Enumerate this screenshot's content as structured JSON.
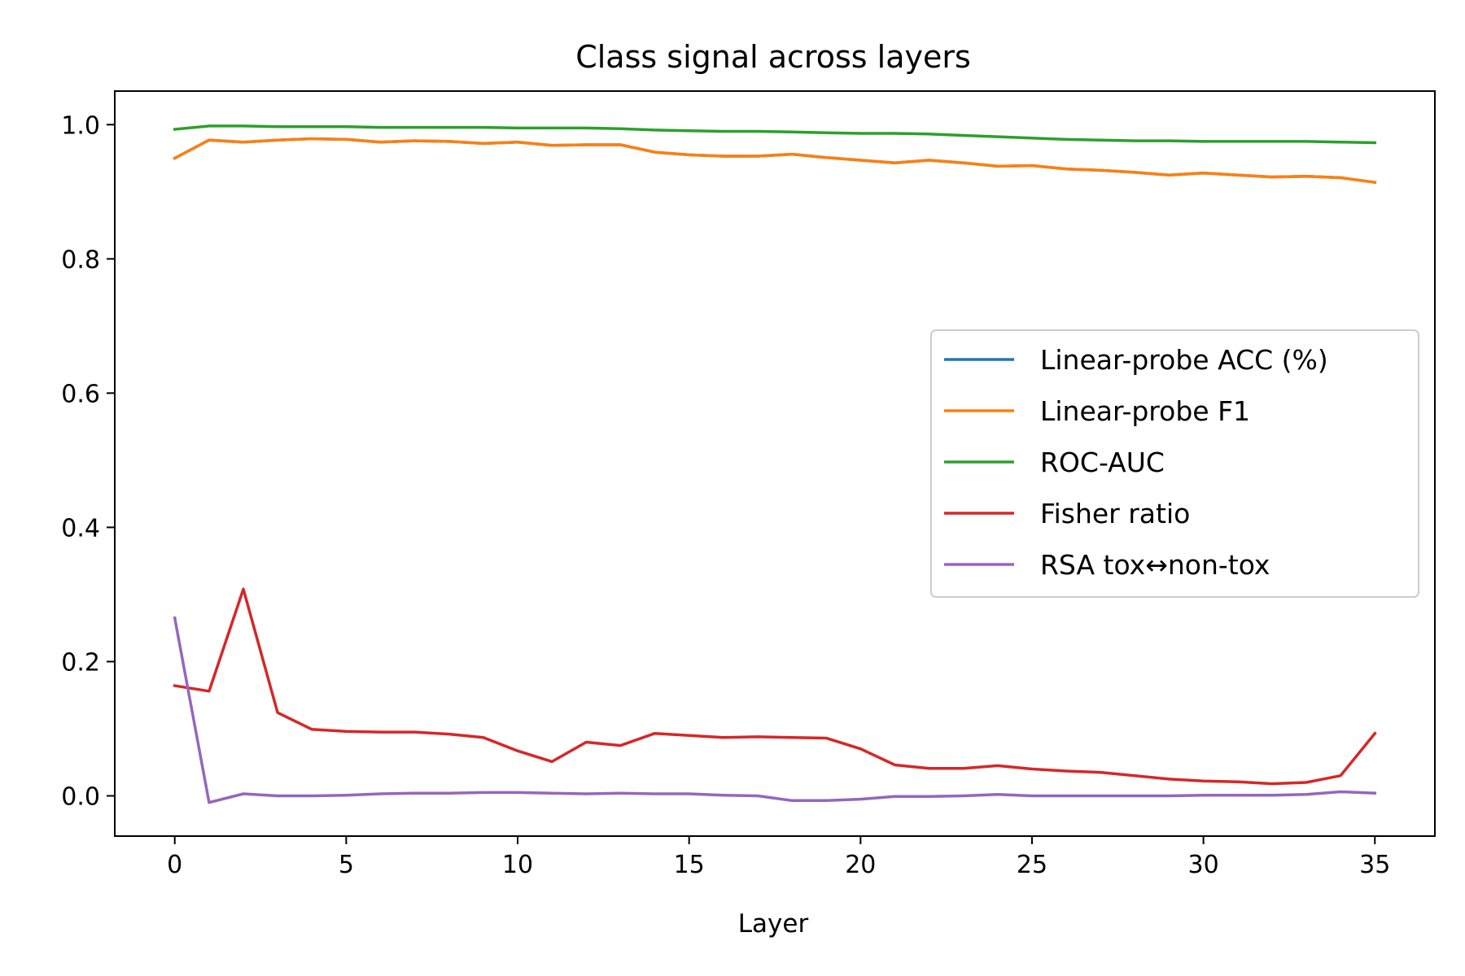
{
  "chart_data": {
    "type": "line",
    "title": "Class signal across layers",
    "xlabel": "Layer",
    "ylabel": "",
    "xlim": [
      -1.75,
      36.75
    ],
    "ylim": [
      -0.06,
      1.05
    ],
    "xticks": [
      0,
      5,
      10,
      15,
      20,
      25,
      30,
      35
    ],
    "yticks": [
      0.0,
      0.2,
      0.4,
      0.6,
      0.8,
      1.0
    ],
    "xtick_labels": [
      "0",
      "5",
      "10",
      "15",
      "20",
      "25",
      "30",
      "35"
    ],
    "ytick_labels": [
      "0.0",
      "0.2",
      "0.4",
      "0.6",
      "0.8",
      "1.0"
    ],
    "grid": false,
    "legend_position": "center-right",
    "x": [
      0,
      1,
      2,
      3,
      4,
      5,
      6,
      7,
      8,
      9,
      10,
      11,
      12,
      13,
      14,
      15,
      16,
      17,
      18,
      19,
      20,
      21,
      22,
      23,
      24,
      25,
      26,
      27,
      28,
      29,
      30,
      31,
      32,
      33,
      34,
      35
    ],
    "series": [
      {
        "name": "Linear-probe ACC (%)",
        "color": "#1f77b4",
        "values": [
          0.95,
          0.977,
          0.974,
          0.977,
          0.979,
          0.978,
          0.974,
          0.976,
          0.975,
          0.972,
          0.974,
          0.969,
          0.97,
          0.97,
          0.959,
          0.955,
          0.953,
          0.953,
          0.956,
          0.951,
          0.947,
          0.943,
          0.947,
          0.943,
          0.938,
          0.939,
          0.934,
          0.932,
          0.929,
          0.925,
          0.928,
          0.925,
          0.922,
          0.923,
          0.921,
          0.914
        ]
      },
      {
        "name": "Linear-probe F1",
        "color": "#ff7f0e",
        "values": [
          0.95,
          0.977,
          0.974,
          0.977,
          0.979,
          0.978,
          0.974,
          0.976,
          0.975,
          0.972,
          0.974,
          0.969,
          0.97,
          0.97,
          0.959,
          0.955,
          0.953,
          0.953,
          0.956,
          0.951,
          0.947,
          0.943,
          0.947,
          0.943,
          0.938,
          0.939,
          0.934,
          0.932,
          0.929,
          0.925,
          0.928,
          0.925,
          0.922,
          0.923,
          0.921,
          0.914
        ]
      },
      {
        "name": "ROC-AUC",
        "color": "#2ca02c",
        "values": [
          0.993,
          0.998,
          0.998,
          0.997,
          0.997,
          0.997,
          0.996,
          0.996,
          0.996,
          0.996,
          0.995,
          0.995,
          0.995,
          0.994,
          0.992,
          0.991,
          0.99,
          0.99,
          0.989,
          0.988,
          0.987,
          0.987,
          0.986,
          0.984,
          0.982,
          0.98,
          0.978,
          0.977,
          0.976,
          0.976,
          0.975,
          0.975,
          0.975,
          0.975,
          0.974,
          0.973
        ]
      },
      {
        "name": "Fisher ratio",
        "color": "#d62728",
        "values": [
          0.164,
          0.156,
          0.308,
          0.124,
          0.099,
          0.096,
          0.095,
          0.095,
          0.092,
          0.087,
          0.067,
          0.051,
          0.08,
          0.075,
          0.093,
          0.09,
          0.087,
          0.088,
          0.087,
          0.086,
          0.07,
          0.046,
          0.041,
          0.041,
          0.045,
          0.04,
          0.037,
          0.035,
          0.03,
          0.025,
          0.022,
          0.021,
          0.018,
          0.02,
          0.03,
          0.093
        ]
      },
      {
        "name": "RSA tox↔non-tox",
        "color": "#9467bd",
        "values": [
          0.265,
          -0.01,
          0.003,
          0.0,
          0.0,
          0.001,
          0.003,
          0.004,
          0.004,
          0.005,
          0.005,
          0.004,
          0.003,
          0.004,
          0.003,
          0.003,
          0.001,
          0.0,
          -0.007,
          -0.007,
          -0.005,
          -0.001,
          -0.001,
          0.0,
          0.002,
          0.0,
          0.0,
          0.0,
          0.0,
          0.0,
          0.001,
          0.001,
          0.001,
          0.002,
          0.006,
          0.004
        ]
      }
    ]
  }
}
